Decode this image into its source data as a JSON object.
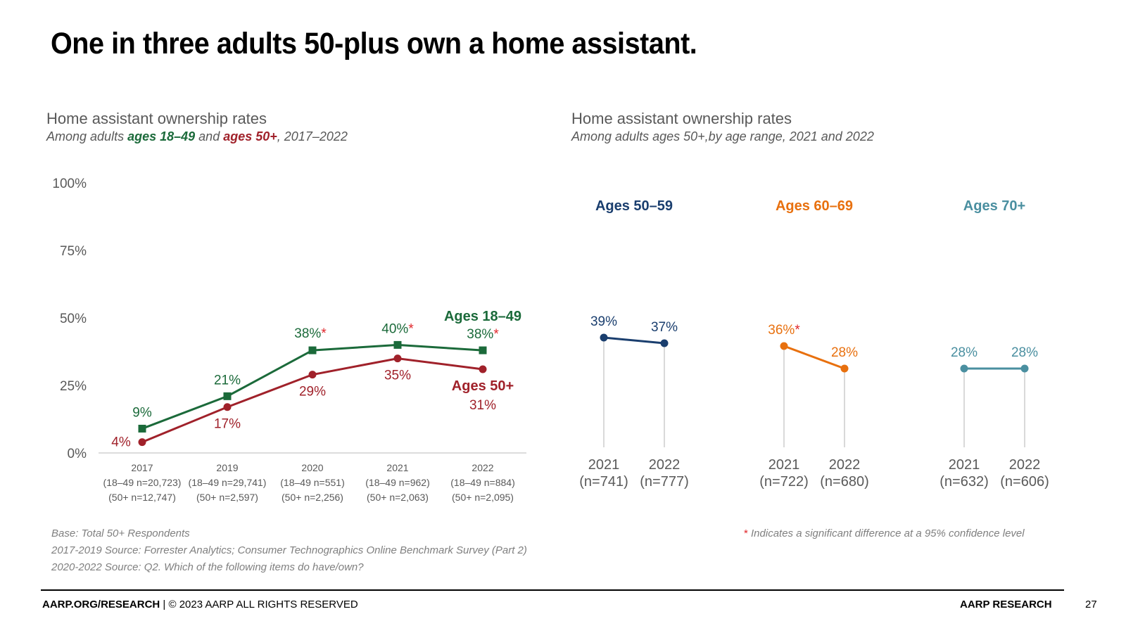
{
  "title": "One in three adults 50-plus own a home assistant.",
  "left_panel": {
    "heading": "Home assistant ownership rates",
    "subtitle_prefix": "Among adults ",
    "subtitle_group1": "ages 18–49",
    "subtitle_and": " and ",
    "subtitle_group2": "ages 50+",
    "subtitle_suffix": ", 2017–2022"
  },
  "right_panel": {
    "heading": "Home assistant ownership rates",
    "subtitle": "Among adults ages 50+,by age range, 2021 and 2022"
  },
  "colors": {
    "ages_18_49": "#1b6a3a",
    "ages_50_plus": "#a0212a",
    "ages_50_59": "#1a3e6e",
    "ages_60_69": "#e8700e",
    "ages_70_plus": "#4a8fa0",
    "significance": "#e0262a"
  },
  "chart_data": [
    {
      "type": "line",
      "title": "Home assistant ownership rates",
      "ylim": [
        0,
        100
      ],
      "y_ticks": [
        "0%",
        "25%",
        "50%",
        "75%",
        "100%"
      ],
      "y_tick_values": [
        0,
        25,
        50,
        75,
        100
      ],
      "categories": [
        {
          "year": "2017",
          "n1": "(18–49 n=20,723)",
          "n2": "(50+ n=12,747)"
        },
        {
          "year": "2019",
          "n1": "(18–49 n=29,741)",
          "n2": "(50+ n=2,597)"
        },
        {
          "year": "2020",
          "n1": "(18–49 n=551)",
          "n2": "(50+ n=2,256)"
        },
        {
          "year": "2021",
          "n1": "(18–49 n=962)",
          "n2": "(50+ n=2,063)"
        },
        {
          "year": "2022",
          "n1": "(18–49 n=884)",
          "n2": "(50+ n=2,095)"
        }
      ],
      "series": [
        {
          "name": "Ages 18–49",
          "values": [
            9,
            21,
            38,
            40,
            38
          ],
          "labels": [
            "9%",
            "21%",
            "38%",
            "40%",
            "38%"
          ],
          "significant": [
            false,
            false,
            true,
            true,
            true
          ]
        },
        {
          "name": "Ages 50+",
          "values": [
            4,
            17,
            29,
            35,
            31
          ],
          "labels": [
            "4%",
            "17%",
            "29%",
            "35%",
            "31%"
          ],
          "significant": [
            false,
            false,
            false,
            false,
            false
          ]
        }
      ]
    },
    {
      "type": "line",
      "title": "Home assistant ownership rates by age range",
      "ylim": [
        0,
        100
      ],
      "groups": [
        {
          "name": "Ages 50–59",
          "points": [
            {
              "year": "2021",
              "n": "(n=741)",
              "value": 39,
              "label": "39%",
              "significant": false
            },
            {
              "year": "2022",
              "n": "(n=777)",
              "value": 37,
              "label": "37%",
              "significant": false
            }
          ]
        },
        {
          "name": "Ages 60–69",
          "points": [
            {
              "year": "2021",
              "n": "(n=722)",
              "value": 36,
              "label": "36%",
              "significant": true
            },
            {
              "year": "2022",
              "n": "(n=680)",
              "value": 28,
              "label": "28%",
              "significant": false
            }
          ]
        },
        {
          "name": "Ages 70+",
          "points": [
            {
              "year": "2021",
              "n": "(n=632)",
              "value": 28,
              "label": "28%",
              "significant": false
            },
            {
              "year": "2022",
              "n": "(n=606)",
              "value": 28,
              "label": "28%",
              "significant": false
            }
          ]
        }
      ]
    }
  ],
  "significance_marker": "*",
  "notes": {
    "base": "Base: Total 50+ Respondents",
    "source1": "2017-2019 Source: Forrester Analytics; Consumer Technographics Online Benchmark Survey (Part 2)",
    "source2": "2020-2022 Source: Q2. Which of the following items do have/own?",
    "significance_text": " Indicates a significant difference at a 95% confidence level"
  },
  "footer": {
    "site": "AARP.ORG/RESEARCH",
    "copyright": " | © 2023 AARP ALL RIGHTS RESERVED",
    "brand": "AARP RESEARCH",
    "page_number": "27"
  }
}
